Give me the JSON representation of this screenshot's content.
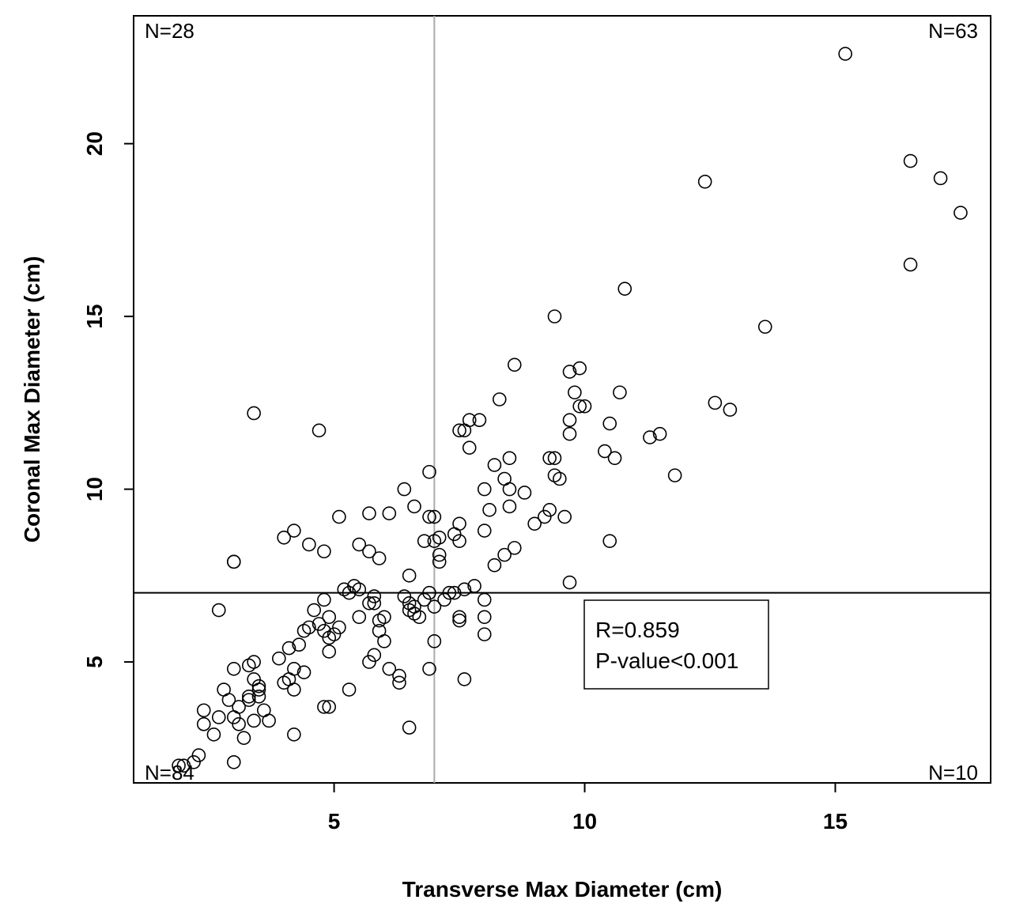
{
  "chart_data": {
    "type": "scatter",
    "xlabel": "Transverse Max Diameter (cm)",
    "ylabel": "Coronal Max Diameter (cm)",
    "xlim": [
      1.0,
      18.1
    ],
    "ylim": [
      1.5,
      23.7
    ],
    "xticks": [
      5,
      10,
      15
    ],
    "yticks": [
      5,
      10,
      15,
      20
    ],
    "grid": false,
    "legend": "none",
    "cutoff_x": 7,
    "cutoff_y": 7,
    "quadrant_counts": {
      "top_left": "N=28",
      "top_right": "N=63",
      "bottom_left": "N=84",
      "bottom_right": "N=10"
    },
    "stats": {
      "r": "R=0.859",
      "p": "P-value<0.001"
    },
    "marker": "open-circle",
    "x": [
      1.9,
      2.0,
      2.2,
      2.3,
      2.4,
      2.4,
      2.6,
      2.7,
      2.8,
      2.9,
      3.0,
      3.0,
      3.1,
      3.2,
      3.3,
      3.0,
      3.1,
      3.3,
      3.4,
      3.4,
      3.5,
      3.5,
      3.5,
      3.6,
      3.7,
      2.7,
      3.0,
      3.4,
      3.3,
      3.9,
      4.0,
      4.1,
      4.1,
      4.2,
      4.2,
      4.3,
      4.4,
      4.4,
      4.5,
      4.6,
      4.7,
      4.8,
      4.8,
      4.9,
      4.9,
      4.9,
      5.0,
      5.1,
      4.8,
      4.9,
      5.3,
      5.5,
      5.7,
      5.8,
      5.9,
      6.0,
      6.1,
      6.3,
      6.3,
      6.5,
      4.2,
      5.2,
      5.3,
      5.5,
      5.4,
      5.7,
      5.8,
      5.8,
      5.9,
      6.0,
      6.4,
      6.5,
      6.5,
      6.6,
      6.6,
      6.7,
      6.8,
      6.9,
      7.0,
      7.2,
      7.3,
      7.4,
      7.5,
      7.6,
      7.0,
      6.9,
      7.1,
      6.9,
      7.6,
      7.8,
      8.0,
      8.0,
      8.0,
      7.5,
      4.0,
      4.2,
      4.5,
      4.8,
      5.1,
      5.5,
      5.7,
      5.7,
      5.9,
      6.1,
      6.4,
      6.5,
      6.6,
      6.8,
      6.9,
      7.0,
      7.0,
      7.1,
      7.1,
      7.4,
      7.5,
      7.5,
      7.6,
      7.7,
      7.9,
      8.0,
      8.0,
      8.1,
      8.2,
      8.3,
      8.4,
      8.5,
      8.5,
      8.6,
      8.5,
      8.8,
      9.0,
      9.3,
      9.4,
      9.2,
      9.3,
      9.4,
      9.5,
      9.6,
      8.2,
      8.6,
      8.4,
      9.7,
      9.7,
      9.8,
      9.9,
      10.0,
      9.9,
      9.7,
      9.7,
      10.5,
      10.4,
      10.6,
      11.3,
      11.5,
      10.7,
      11.8,
      10.5,
      3.4,
      4.7,
      3.0,
      7.5,
      7.7,
      9.4,
      10.8,
      12.4,
      12.6,
      12.9,
      13.6,
      15.2,
      16.5,
      16.5,
      17.1,
      17.5
    ],
    "y": [
      2.0,
      2.0,
      2.1,
      2.3,
      3.2,
      3.6,
      2.9,
      3.4,
      4.2,
      3.9,
      2.1,
      3.4,
      3.7,
      2.8,
      4.0,
      4.8,
      3.2,
      3.9,
      3.3,
      4.5,
      4.2,
      4.0,
      4.3,
      3.6,
      3.3,
      6.5,
      7.9,
      5.0,
      4.9,
      5.1,
      4.4,
      4.5,
      5.4,
      4.2,
      4.8,
      5.5,
      5.9,
      4.7,
      6.0,
      6.5,
      6.1,
      6.8,
      3.7,
      3.7,
      5.3,
      6.3,
      5.8,
      6.0,
      5.9,
      5.7,
      4.2,
      6.3,
      5.0,
      5.2,
      5.9,
      5.6,
      4.8,
      4.6,
      4.4,
      3.1,
      2.9,
      7.1,
      7.0,
      7.1,
      7.2,
      6.7,
      6.9,
      6.7,
      6.2,
      6.3,
      6.9,
      6.7,
      6.5,
      6.6,
      6.4,
      6.3,
      6.8,
      7.0,
      6.6,
      6.8,
      7.0,
      7.0,
      6.3,
      7.1,
      5.6,
      4.8,
      7.9,
      10.5,
      4.5,
      7.2,
      6.8,
      6.3,
      5.8,
      6.2,
      8.6,
      8.8,
      8.4,
      8.2,
      9.2,
      8.4,
      9.3,
      8.2,
      8.0,
      9.3,
      10.0,
      7.5,
      9.5,
      8.5,
      9.2,
      8.5,
      9.2,
      8.1,
      8.6,
      8.7,
      8.5,
      9.0,
      11.7,
      11.2,
      12.0,
      8.8,
      10.0,
      9.4,
      10.7,
      12.6,
      10.3,
      10.9,
      10.0,
      13.6,
      9.5,
      9.9,
      9.0,
      10.9,
      10.9,
      9.2,
      9.4,
      10.4,
      10.3,
      9.2,
      7.8,
      8.3,
      8.1,
      13.4,
      12.0,
      12.8,
      13.5,
      12.4,
      12.4,
      11.6,
      7.3,
      11.9,
      11.1,
      10.9,
      11.5,
      11.6,
      12.8,
      10.4,
      8.5,
      12.2,
      11.7,
      7.9,
      11.7,
      12.0,
      15.0,
      15.8,
      18.9,
      12.5,
      12.3,
      14.7,
      22.6,
      19.5,
      16.5,
      19.0,
      18.0
    ]
  }
}
